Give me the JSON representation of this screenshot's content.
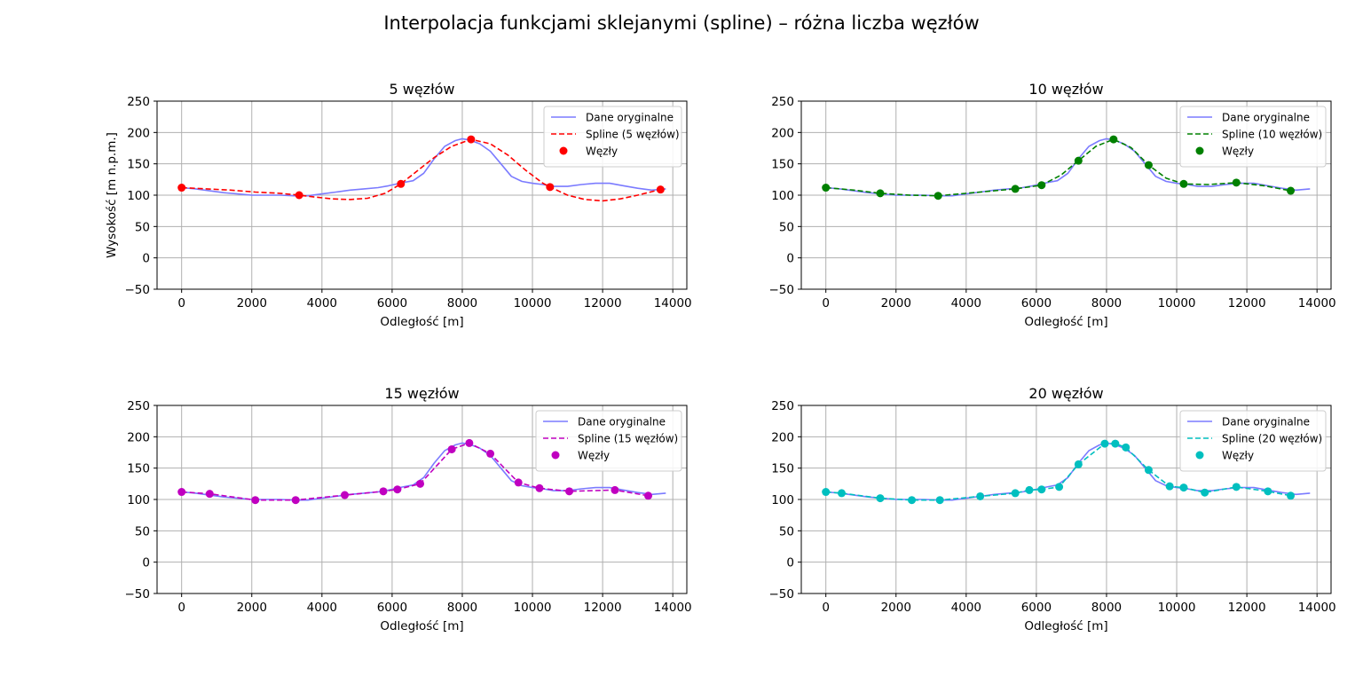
{
  "figure": {
    "suptitle": "Interpolacja funkcjami sklejanymi (spline) – różna liczba węzłów"
  },
  "colors": {
    "original": "#7b7bff",
    "grid": "#b0b0b0"
  },
  "chart_data": [
    {
      "type": "line",
      "title": "5 węzłów",
      "xlabel": "Odległość [m]",
      "ylabel": "Wysokość [m n.p.m.]",
      "xlim": [
        -700,
        14400
      ],
      "ylim": [
        -50,
        250
      ],
      "xticks": [
        0,
        2000,
        4000,
        6000,
        8000,
        10000,
        12000,
        14000
      ],
      "yticks": [
        -50,
        0,
        50,
        100,
        150,
        200,
        250
      ],
      "grid": true,
      "legend_position": "top-right",
      "spline_color": "#ff0000",
      "series": [
        {
          "name": "Dane oryginalne",
          "kind": "line",
          "x": [
            0,
            400,
            800,
            1200,
            1600,
            2000,
            2400,
            2800,
            3200,
            3600,
            4000,
            4400,
            4800,
            5200,
            5600,
            5900,
            6300,
            6600,
            6900,
            7200,
            7500,
            7800,
            8000,
            8200,
            8500,
            8800,
            9100,
            9400,
            9700,
            10000,
            10300,
            10600,
            11000,
            11400,
            11800,
            12200,
            12600,
            13000,
            13400,
            13800
          ],
          "y": [
            112,
            110,
            107,
            104,
            102,
            100,
            100,
            100,
            99,
            99,
            102,
            105,
            108,
            110,
            112,
            115,
            120,
            123,
            135,
            158,
            178,
            187,
            190,
            188,
            182,
            170,
            150,
            130,
            122,
            119,
            117,
            114,
            114,
            117,
            119,
            119,
            115,
            111,
            108,
            110
          ]
        },
        {
          "name": "Spline (5 węzłów)",
          "kind": "spline",
          "x": [
            0,
            700,
            1400,
            2100,
            2800,
            3350,
            3800,
            4300,
            4800,
            5300,
            5800,
            6250,
            6700,
            7200,
            7700,
            8250,
            8800,
            9300,
            9800,
            10300,
            10500,
            11000,
            11500,
            12000,
            12500,
            13000,
            13650
          ],
          "y": [
            112,
            110,
            108,
            105,
            103,
            100,
            97,
            94,
            93,
            95,
            103,
            118,
            138,
            160,
            178,
            189,
            182,
            164,
            140,
            119,
            113,
            100,
            93,
            91,
            94,
            100,
            109
          ]
        },
        {
          "name": "Węzły",
          "kind": "points",
          "x": [
            0,
            3350,
            6250,
            8250,
            10500,
            13650
          ],
          "y": [
            112,
            100,
            118,
            189,
            113,
            109
          ]
        }
      ]
    },
    {
      "type": "line",
      "title": "10 węzłów",
      "xlabel": "Odległość [m]",
      "ylabel": "",
      "xlim": [
        -700,
        14400
      ],
      "ylim": [
        -50,
        250
      ],
      "xticks": [
        0,
        2000,
        4000,
        6000,
        8000,
        10000,
        12000,
        14000
      ],
      "yticks": [
        -50,
        0,
        50,
        100,
        150,
        200,
        250
      ],
      "grid": true,
      "legend_position": "top-right",
      "spline_color": "#008000",
      "series": [
        {
          "name": "Dane oryginalne",
          "kind": "line",
          "x": [
            0,
            400,
            800,
            1200,
            1600,
            2000,
            2400,
            2800,
            3200,
            3600,
            4000,
            4400,
            4800,
            5200,
            5600,
            5900,
            6300,
            6600,
            6900,
            7200,
            7500,
            7800,
            8000,
            8200,
            8500,
            8800,
            9100,
            9400,
            9700,
            10000,
            10300,
            10600,
            11000,
            11400,
            11800,
            12200,
            12600,
            13000,
            13400,
            13800
          ],
          "y": [
            112,
            110,
            107,
            104,
            102,
            100,
            100,
            100,
            99,
            99,
            102,
            105,
            108,
            110,
            112,
            115,
            120,
            123,
            135,
            158,
            178,
            187,
            190,
            188,
            182,
            170,
            150,
            130,
            122,
            119,
            117,
            114,
            114,
            117,
            119,
            119,
            115,
            111,
            108,
            110
          ]
        },
        {
          "name": "Spline (10 węzłów)",
          "kind": "spline",
          "x": [
            0,
            800,
            1550,
            2400,
            3200,
            4200,
            5400,
            6150,
            6700,
            7200,
            7700,
            8200,
            8700,
            9200,
            9700,
            10200,
            10900,
            11700,
            12500,
            13250
          ],
          "y": [
            112,
            108,
            103,
            100,
            99,
            104,
            110,
            116,
            132,
            155,
            178,
            189,
            176,
            148,
            127,
            118,
            117,
            120,
            115,
            107
          ]
        },
        {
          "name": "Węzły",
          "kind": "points",
          "x": [
            0,
            1550,
            3200,
            5400,
            6150,
            7200,
            8200,
            9200,
            10200,
            11700,
            13250
          ],
          "y": [
            112,
            103,
            99,
            110,
            116,
            155,
            189,
            148,
            118,
            120,
            107
          ]
        }
      ]
    },
    {
      "type": "line",
      "title": "15 węzłów",
      "xlabel": "Odległość [m]",
      "ylabel": "",
      "xlim": [
        -700,
        14400
      ],
      "ylim": [
        -50,
        250
      ],
      "xticks": [
        0,
        2000,
        4000,
        6000,
        8000,
        10000,
        12000,
        14000
      ],
      "yticks": [
        -50,
        0,
        50,
        100,
        150,
        200,
        250
      ],
      "grid": true,
      "legend_position": "top-right",
      "spline_color": "#c000c0",
      "series": [
        {
          "name": "Dane oryginalne",
          "kind": "line",
          "x": [
            0,
            400,
            800,
            1200,
            1600,
            2000,
            2400,
            2800,
            3200,
            3600,
            4000,
            4400,
            4800,
            5200,
            5600,
            5900,
            6300,
            6600,
            6900,
            7200,
            7500,
            7800,
            8000,
            8200,
            8500,
            8800,
            9100,
            9400,
            9700,
            10000,
            10300,
            10600,
            11000,
            11400,
            11800,
            12200,
            12600,
            13000,
            13400,
            13800
          ],
          "y": [
            112,
            110,
            107,
            104,
            102,
            100,
            100,
            100,
            99,
            99,
            102,
            105,
            108,
            110,
            112,
            115,
            120,
            123,
            135,
            158,
            178,
            187,
            190,
            188,
            182,
            170,
            150,
            130,
            122,
            119,
            117,
            114,
            114,
            117,
            119,
            119,
            115,
            111,
            108,
            110
          ]
        },
        {
          "name": "Spline (15 węzłów)",
          "kind": "spline",
          "x": [
            0,
            800,
            2100,
            3250,
            4650,
            5750,
            6150,
            6800,
            7700,
            8200,
            8800,
            9600,
            10200,
            11050,
            12350,
            13300
          ],
          "y": [
            112,
            109,
            99,
            99,
            107,
            113,
            116,
            125,
            180,
            190,
            173,
            127,
            118,
            113,
            115,
            106
          ]
        },
        {
          "name": "Węzły",
          "kind": "points",
          "x": [
            0,
            800,
            2100,
            3250,
            4650,
            5750,
            6150,
            6800,
            7700,
            8200,
            8800,
            9600,
            10200,
            11050,
            12350,
            13300
          ],
          "y": [
            112,
            109,
            99,
            99,
            107,
            113,
            116,
            125,
            180,
            190,
            173,
            127,
            118,
            113,
            115,
            106
          ]
        }
      ]
    },
    {
      "type": "line",
      "title": "20 węzłów",
      "xlabel": "Odległość [m]",
      "ylabel": "",
      "xlim": [
        -700,
        14400
      ],
      "ylim": [
        -50,
        250
      ],
      "xticks": [
        0,
        2000,
        4000,
        6000,
        8000,
        10000,
        12000,
        14000
      ],
      "yticks": [
        -50,
        0,
        50,
        100,
        150,
        200,
        250
      ],
      "grid": true,
      "legend_position": "top-right",
      "spline_color": "#00bfbf",
      "series": [
        {
          "name": "Dane oryginalne",
          "kind": "line",
          "x": [
            0,
            400,
            800,
            1200,
            1600,
            2000,
            2400,
            2800,
            3200,
            3600,
            4000,
            4400,
            4800,
            5200,
            5600,
            5900,
            6300,
            6600,
            6900,
            7200,
            7500,
            7800,
            8000,
            8200,
            8500,
            8800,
            9100,
            9400,
            9700,
            10000,
            10300,
            10600,
            11000,
            11400,
            11800,
            12200,
            12600,
            13000,
            13400,
            13800
          ],
          "y": [
            112,
            110,
            107,
            104,
            102,
            100,
            100,
            100,
            99,
            99,
            102,
            105,
            108,
            110,
            112,
            115,
            120,
            123,
            135,
            158,
            178,
            187,
            190,
            188,
            182,
            170,
            150,
            130,
            122,
            119,
            117,
            114,
            114,
            117,
            119,
            119,
            115,
            111,
            108,
            110
          ]
        },
        {
          "name": "Spline (20 węzłów)",
          "kind": "spline",
          "x": [
            0,
            450,
            1550,
            2450,
            3250,
            4400,
            5400,
            5800,
            6150,
            6650,
            7200,
            7950,
            8250,
            8550,
            9200,
            9800,
            10200,
            10800,
            11700,
            12600,
            13250
          ],
          "y": [
            112,
            110,
            102,
            99,
            99,
            105,
            110,
            115,
            116,
            120,
            156,
            189,
            189,
            183,
            147,
            121,
            119,
            111,
            120,
            113,
            106
          ]
        },
        {
          "name": "Węzły",
          "kind": "points",
          "x": [
            0,
            450,
            1550,
            2450,
            3250,
            4400,
            5400,
            5800,
            6150,
            6650,
            7200,
            7950,
            8250,
            8550,
            9200,
            9800,
            10200,
            10800,
            11700,
            12600,
            13250
          ],
          "y": [
            112,
            110,
            102,
            99,
            99,
            105,
            110,
            115,
            116,
            120,
            156,
            189,
            189,
            183,
            147,
            121,
            119,
            111,
            120,
            113,
            106
          ]
        }
      ]
    }
  ]
}
